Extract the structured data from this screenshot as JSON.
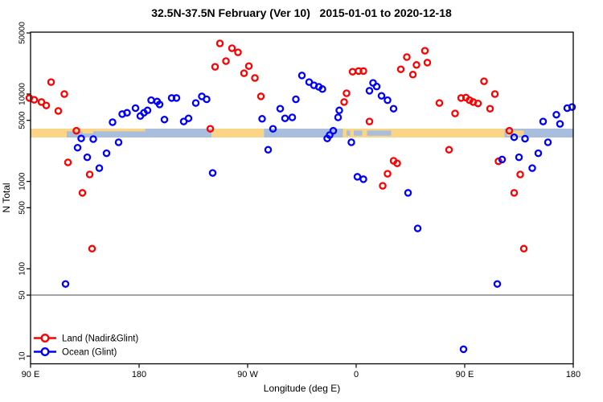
{
  "chart_data": {
    "type": "scatter",
    "title": "32.5N-37.5N February (Ver 10)   2015-01-01 to 2020-12-18",
    "xlabel": "Longitude (deg E)",
    "ylabel": "N Total",
    "x_axis": {
      "range": [
        90,
        540
      ],
      "ticks": [
        90,
        180,
        270,
        360,
        450,
        540
      ],
      "tick_labels": [
        "90 E",
        "180",
        "90 W",
        "0",
        "90 E",
        "180"
      ]
    },
    "y_axis": {
      "scale": "log",
      "range": [
        10,
        50000
      ],
      "ticks": [
        10,
        50,
        100,
        500,
        1000,
        5000,
        10000,
        50000
      ],
      "tick_labels": [
        "10",
        "50",
        "100",
        "500",
        "1000",
        "5000",
        "10000",
        "50000"
      ]
    },
    "reference_line_y": 50,
    "reference_line_color": "#858585",
    "legend_position": "bottom-left",
    "series": [
      {
        "name": "Land (Nadir&Glint)",
        "color": "#ff0000",
        "points": [
          [
            89,
            9000
          ],
          [
            93,
            8600
          ],
          [
            99,
            8100
          ],
          [
            103,
            7400
          ],
          [
            107,
            13700
          ],
          [
            113,
            6400
          ],
          [
            118,
            10000
          ],
          [
            121,
            1650
          ],
          [
            128,
            3800
          ],
          [
            133,
            740
          ],
          [
            139,
            1200
          ],
          [
            141,
            170
          ],
          [
            239,
            4000
          ],
          [
            243,
            20500
          ],
          [
            247,
            38000
          ],
          [
            252,
            23800
          ],
          [
            257,
            33400
          ],
          [
            262,
            30000
          ],
          [
            267,
            17300
          ],
          [
            271,
            20900
          ],
          [
            276,
            15250
          ],
          [
            281,
            9400
          ],
          [
            350,
            8100
          ],
          [
            352,
            10200
          ],
          [
            357,
            18000
          ],
          [
            362,
            18300
          ],
          [
            366,
            18300
          ],
          [
            371,
            4850
          ],
          [
            382,
            890
          ],
          [
            386,
            1225
          ],
          [
            391,
            1720
          ],
          [
            394,
            1610
          ],
          [
            397,
            19200
          ],
          [
            402,
            26500
          ],
          [
            407,
            16700
          ],
          [
            410,
            21500
          ],
          [
            417,
            31300
          ],
          [
            419,
            22900
          ],
          [
            429,
            7900
          ],
          [
            437,
            2300
          ],
          [
            442,
            6000
          ],
          [
            447,
            9000
          ],
          [
            451,
            9100
          ],
          [
            454,
            8500
          ],
          [
            457,
            8100
          ],
          [
            461,
            7800
          ],
          [
            466,
            14000
          ],
          [
            471,
            6800
          ],
          [
            475,
            10000
          ],
          [
            478,
            1700
          ],
          [
            487,
            3800
          ],
          [
            491,
            740
          ],
          [
            496,
            1200
          ],
          [
            499,
            170
          ]
        ]
      },
      {
        "name": "Ocean (Glint)",
        "color": "#0000ff",
        "points": [
          [
            119,
            67
          ],
          [
            129,
            2430
          ],
          [
            132,
            3100
          ],
          [
            137,
            1890
          ],
          [
            142,
            3050
          ],
          [
            147,
            1420
          ],
          [
            153,
            2100
          ],
          [
            158,
            4760
          ],
          [
            163,
            2800
          ],
          [
            166,
            5900
          ],
          [
            170,
            6100
          ],
          [
            177,
            6900
          ],
          [
            181,
            5600
          ],
          [
            184,
            6100
          ],
          [
            187,
            6500
          ],
          [
            190,
            8500
          ],
          [
            195,
            8200
          ],
          [
            197,
            7600
          ],
          [
            201,
            5100
          ],
          [
            207,
            9000
          ],
          [
            211,
            9000
          ],
          [
            217,
            4850
          ],
          [
            221,
            5275
          ],
          [
            227,
            7900
          ],
          [
            232,
            9400
          ],
          [
            236,
            8700
          ],
          [
            241,
            1250
          ],
          [
            282,
            5200
          ],
          [
            287,
            2300
          ],
          [
            291,
            4000
          ],
          [
            297,
            6800
          ],
          [
            301,
            5275
          ],
          [
            307,
            5400
          ],
          [
            310,
            8700
          ],
          [
            315,
            16300
          ],
          [
            321,
            13700
          ],
          [
            325,
            12600
          ],
          [
            329,
            12100
          ],
          [
            332,
            11400
          ],
          [
            336,
            3100
          ],
          [
            338,
            3390
          ],
          [
            341,
            3800
          ],
          [
            345,
            5400
          ],
          [
            346,
            6500
          ],
          [
            356,
            2800
          ],
          [
            361,
            1130
          ],
          [
            366,
            1060
          ],
          [
            371,
            10900
          ],
          [
            374,
            13400
          ],
          [
            377,
            12200
          ],
          [
            381,
            9540
          ],
          [
            386,
            8500
          ],
          [
            391,
            6800
          ],
          [
            403,
            740
          ],
          [
            411,
            290
          ],
          [
            449,
            12
          ],
          [
            477,
            67
          ],
          [
            481,
            1780
          ],
          [
            491,
            3200
          ],
          [
            495,
            1890
          ],
          [
            500,
            3080
          ],
          [
            506,
            1420
          ],
          [
            511,
            2100
          ],
          [
            515,
            4850
          ],
          [
            519,
            2800
          ],
          [
            526,
            5800
          ],
          [
            529,
            4550
          ],
          [
            535,
            6900
          ],
          [
            539,
            7100
          ]
        ]
      }
    ],
    "coast_band": {
      "description": "land/ocean strip along 32.5N-37.5N",
      "n_range": [
        3180,
        4020
      ],
      "land_color": "#fad585",
      "ocean_color": "#a8bedc",
      "segments": [
        {
          "from": 90,
          "to": 120,
          "type": "land"
        },
        {
          "from": 120,
          "to": 240,
          "type": "ocean"
        },
        {
          "from": 240,
          "to": 283.5,
          "type": "land"
        },
        {
          "from": 283.5,
          "to": 349,
          "type": "ocean"
        },
        {
          "from": 349,
          "to": 391,
          "type": "land"
        },
        {
          "from": 391,
          "to": 483,
          "type": "land"
        },
        {
          "from": 483,
          "to": 540,
          "type": "ocean"
        }
      ],
      "patches": [
        {
          "from": 120,
          "to": 185,
          "type": "land",
          "extent": "sliver"
        },
        {
          "from": 133,
          "to": 142,
          "type": "land",
          "extent": "top"
        },
        {
          "from": 176,
          "to": 182,
          "type": "land",
          "extent": "sliver"
        },
        {
          "from": 352,
          "to": 355,
          "type": "ocean",
          "extent": "mid"
        },
        {
          "from": 358,
          "to": 365,
          "type": "ocean",
          "extent": "mid"
        },
        {
          "from": 369,
          "to": 389,
          "type": "ocean",
          "extent": "mid"
        },
        {
          "from": 485,
          "to": 499,
          "type": "land",
          "extent": "mid"
        }
      ]
    }
  },
  "legend": {
    "items": [
      {
        "label": "Land (Nadir&Glint)",
        "color": "#ff0000"
      },
      {
        "label": "Ocean (Glint)",
        "color": "#0000ff"
      }
    ]
  }
}
